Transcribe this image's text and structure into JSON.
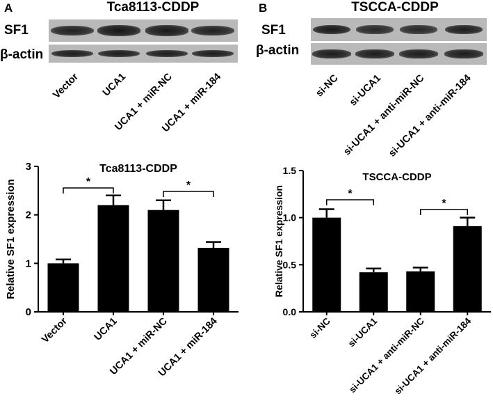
{
  "panelA": {
    "letter": "A",
    "blot": {
      "title": "Tca8113-CDDP",
      "rows": [
        {
          "label": "SF1",
          "band_intensity": [
            0.85,
            1.0,
            0.95,
            0.85
          ]
        },
        {
          "label": "β-actin",
          "band_intensity": [
            0.9,
            0.9,
            0.9,
            0.9
          ]
        }
      ],
      "lanes": [
        "Vector",
        "UCA1",
        "UCA1 + miR-NC",
        "UCA1 + miR-184"
      ]
    }
  },
  "panelB": {
    "letter": "B",
    "blot": {
      "title": "TSCCA-CDDP",
      "rows": [
        {
          "label": "SF1",
          "band_intensity": [
            0.95,
            0.75,
            0.75,
            0.9
          ]
        },
        {
          "label": "β-actin",
          "band_intensity": [
            0.9,
            0.9,
            0.9,
            0.9
          ]
        }
      ],
      "lanes": [
        "si-NC",
        "si-UCA1",
        "si-UCA1 + anti-miR-NC",
        "si-UCA1 + anti-miR-184"
      ]
    }
  },
  "chart_data": [
    {
      "type": "bar",
      "title": "Tca8113-CDDP",
      "ylabel": "Relative SF1 expression",
      "xlabel": "",
      "categories": [
        "Vector",
        "UCA1",
        "UCA1 + miR-NC",
        "UCA1 + miR-184"
      ],
      "values": [
        1.0,
        2.2,
        2.1,
        1.32
      ],
      "errors": [
        0.08,
        0.2,
        0.2,
        0.12
      ],
      "ylim": [
        0,
        3
      ],
      "yticks": [
        "0",
        "1",
        "2",
        "3"
      ],
      "significance": [
        {
          "from": 0,
          "to": 1,
          "label": "*"
        },
        {
          "from": 2,
          "to": 3,
          "label": "*"
        }
      ],
      "bar_color": "#000000"
    },
    {
      "type": "bar",
      "title": "TSCCA-CDDP",
      "ylabel": "Relative SF1 expression",
      "xlabel": "",
      "categories": [
        "si-NC",
        "si-UCA1",
        "si-UCA1 + anti-miR-NC",
        "si-UCA1 + anti-miR-184"
      ],
      "values": [
        1.0,
        0.42,
        0.43,
        0.91
      ],
      "errors": [
        0.09,
        0.04,
        0.04,
        0.09
      ],
      "ylim": [
        0,
        1.5
      ],
      "yticks": [
        "0.0",
        "0.5",
        "1.0",
        "1.5"
      ],
      "significance": [
        {
          "from": 0,
          "to": 1,
          "label": "*"
        },
        {
          "from": 2,
          "to": 3,
          "label": "*"
        }
      ],
      "bar_color": "#000000"
    }
  ]
}
